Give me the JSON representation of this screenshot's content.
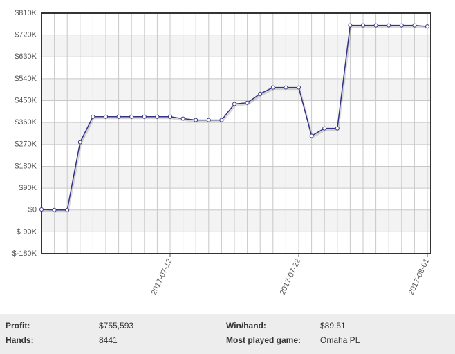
{
  "chart_data": {
    "type": "line",
    "x": [
      "2017-07-02",
      "2017-07-03",
      "2017-07-04",
      "2017-07-05",
      "2017-07-06",
      "2017-07-07",
      "2017-07-08",
      "2017-07-09",
      "2017-07-10",
      "2017-07-11",
      "2017-07-12",
      "2017-07-13",
      "2017-07-14",
      "2017-07-15",
      "2017-07-16",
      "2017-07-17",
      "2017-07-18",
      "2017-07-19",
      "2017-07-20",
      "2017-07-21",
      "2017-07-22",
      "2017-07-23",
      "2017-07-24",
      "2017-07-25",
      "2017-07-26",
      "2017-07-27",
      "2017-07-28",
      "2017-07-29",
      "2017-07-30",
      "2017-07-31",
      "2017-08-01"
    ],
    "series": [
      {
        "color": "#333388",
        "values": [
          2000,
          0,
          0,
          279000,
          384000,
          384000,
          384000,
          384000,
          384000,
          384000,
          384000,
          376000,
          370000,
          370000,
          370000,
          436000,
          441000,
          478000,
          504000,
          504000,
          504000,
          305000,
          336000,
          336000,
          760000,
          760000,
          760000,
          760000,
          760000,
          760000,
          755593
        ]
      }
    ],
    "xlim": [
      "2017-07-02",
      "2017-08-01"
    ],
    "xticks": [
      "2017-07-12",
      "2017-07-22",
      "2017-08-01"
    ],
    "ylim": [
      -180000,
      810000
    ],
    "yticks": [
      {
        "value": -180000,
        "label": "$-180K"
      },
      {
        "value": -90000,
        "label": "$-90K"
      },
      {
        "value": 0,
        "label": "$0"
      },
      {
        "value": 90000,
        "label": "$90K"
      },
      {
        "value": 180000,
        "label": "$180K"
      },
      {
        "value": 270000,
        "label": "$270K"
      },
      {
        "value": 360000,
        "label": "$360K"
      },
      {
        "value": 450000,
        "label": "$450K"
      },
      {
        "value": 540000,
        "label": "$540K"
      },
      {
        "value": 630000,
        "label": "$630K"
      },
      {
        "value": 720000,
        "label": "$720K"
      },
      {
        "value": 810000,
        "label": "$810K"
      }
    ],
    "grid": true
  },
  "stats": [
    {
      "label": "Profit:",
      "value": "$755,593"
    },
    {
      "label": "Win/hand:",
      "value": "$89.51"
    },
    {
      "label": "Hands:",
      "value": "8441"
    },
    {
      "label": "Most played game:",
      "value": "Omaha PL"
    }
  ]
}
